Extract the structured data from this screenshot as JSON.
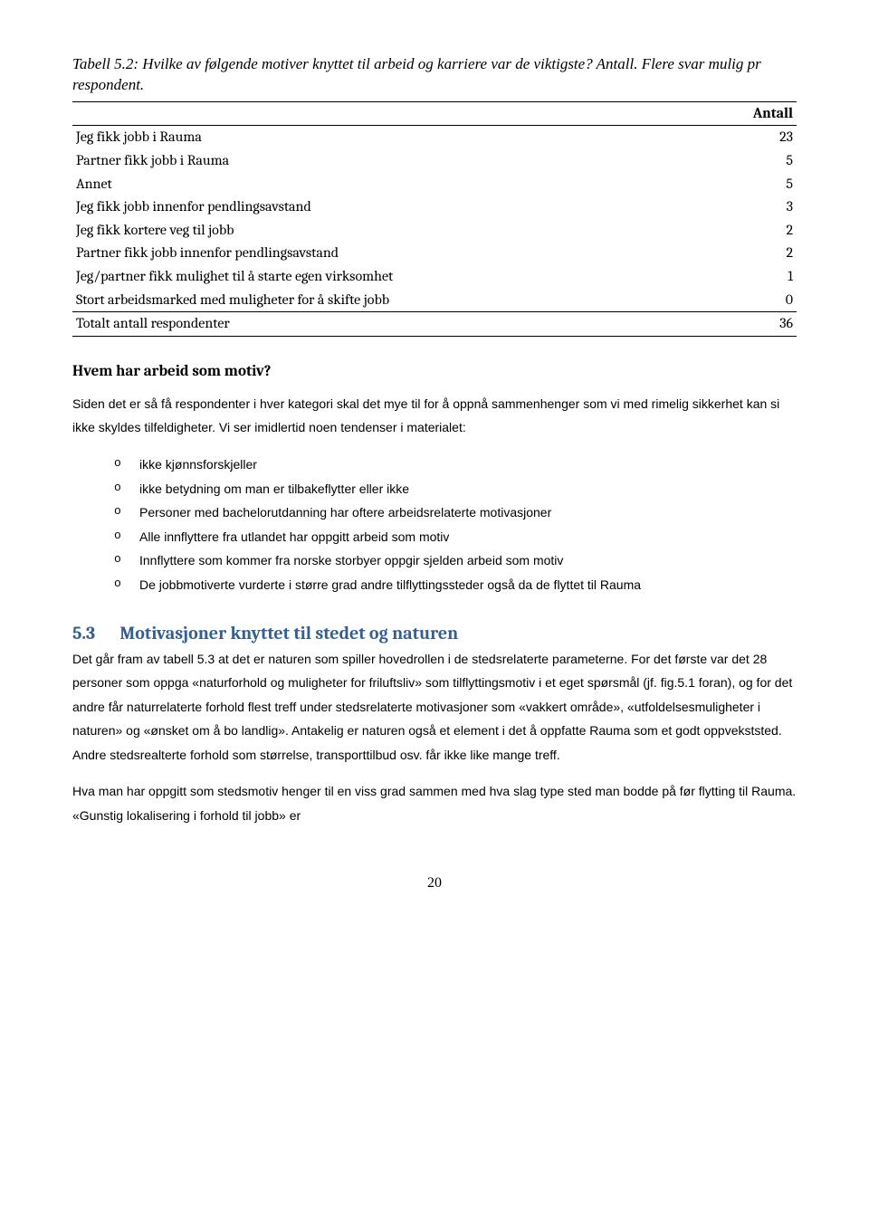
{
  "caption": "Tabell 5.2: Hvilke av følgende motiver knyttet til arbeid og karriere var de viktigste? Antall. Flere svar mulig pr respondent.",
  "table": {
    "header": "Antall",
    "rows": [
      {
        "label": "Jeg fikk jobb i Rauma",
        "value": 23
      },
      {
        "label": "Partner fikk jobb i Rauma",
        "value": 5
      },
      {
        "label": "Annet",
        "value": 5
      },
      {
        "label": "Jeg fikk jobb innenfor pendlingsavstand",
        "value": 3
      },
      {
        "label": "Jeg fikk kortere veg til jobb",
        "value": 2
      },
      {
        "label": "Partner fikk jobb innenfor pendlingsavstand",
        "value": 2
      },
      {
        "label": "Jeg/partner fikk mulighet til å starte egen virksomhet",
        "value": 1
      },
      {
        "label": "Stort arbeidsmarked med muligheter for å skifte jobb",
        "value": 0
      }
    ],
    "total_label": "Totalt antall respondenter",
    "total_value": 36
  },
  "subhead": "Hvem har arbeid som motiv?",
  "para1": "Siden det er så få respondenter i hver kategori skal det mye til for å oppnå sammenhenger som vi med rimelig sikkerhet kan si ikke skyldes tilfeldigheter. Vi ser imidlertid noen tendenser i materialet:",
  "bullets": [
    "ikke kjønnsforskjeller",
    "ikke betydning om man er tilbakeflytter eller ikke",
    "Personer med bachelorutdanning har oftere arbeidsrelaterte motivasjoner",
    "Alle innflyttere fra utlandet har oppgitt arbeid som motiv",
    "Innflyttere som kommer fra norske storbyer oppgir sjelden arbeid som motiv",
    "De jobbmotiverte vurderte i større grad andre tilflyttingssteder også da de flyttet til Rauma"
  ],
  "section": {
    "num": "5.3",
    "title": "Motivasjoner knyttet til stedet og naturen"
  },
  "para2": "Det går fram av tabell 5.3 at det er naturen som spiller hovedrollen i de stedsrelaterte parameterne. For det første var det 28 personer som oppga «naturforhold og muligheter for friluftsliv» som tilflyttingsmotiv i et eget spørsmål (jf. fig.5.1 foran), og for det andre får naturrelaterte forhold flest treff under stedsrelaterte motivasjoner som «vakkert område», «utfoldelsesmuligheter i naturen» og «ønsket om å bo landlig». Antakelig er naturen også et element i det å oppfatte Rauma som et godt oppvekststed. Andre stedsrealterte forhold som størrelse, transporttilbud osv. får ikke like mange treff.",
  "para3": "Hva man har oppgitt som stedsmotiv henger til en viss grad sammen med hva slag type sted man bodde på før flytting til Rauma. «Gunstig lokalisering i forhold til jobb» er",
  "pagenum": "20"
}
